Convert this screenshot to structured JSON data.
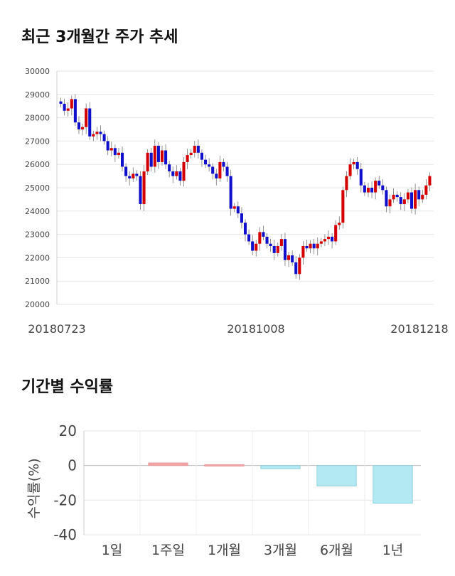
{
  "sections": {
    "price_title": "최근 3개월간 주가 추세",
    "return_title": "기간별 수익률"
  },
  "chart_data": [
    {
      "type": "candlestick",
      "title": "최근 3개월간 주가 추세",
      "ylim": [
        20000,
        30000
      ],
      "yticks": [
        20000,
        21000,
        22000,
        23000,
        24000,
        25000,
        26000,
        27000,
        28000,
        29000,
        30000
      ],
      "ytick_labels": [
        "20000",
        "21000",
        "22000",
        "23000",
        "24000",
        "25000",
        "26000",
        "27000",
        "28000",
        "29000",
        "30000"
      ],
      "x_labels": [
        "20180723",
        "20181008",
        "20181218"
      ],
      "grid": true,
      "up_color": "#d40000",
      "down_color": "#1010cc",
      "close_series": [
        28600,
        28300,
        28400,
        28800,
        27800,
        27500,
        27600,
        28400,
        27200,
        27300,
        27400,
        27300,
        27000,
        26600,
        26700,
        26400,
        26500,
        25900,
        25500,
        25400,
        25600,
        25500,
        24300,
        25700,
        26500,
        25900,
        26800,
        26100,
        26600,
        26000,
        25700,
        25500,
        25700,
        25300,
        26100,
        26400,
        26500,
        26800,
        26500,
        26200,
        26000,
        25900,
        25600,
        25400,
        26100,
        25900,
        25500,
        24100,
        24200,
        23900,
        23500,
        23000,
        22700,
        22300,
        22600,
        23100,
        22900,
        22600,
        22500,
        22200,
        22500,
        22800,
        21900,
        22100,
        21800,
        21300,
        22000,
        22500,
        22400,
        22600,
        22400,
        22600,
        22700,
        22800,
        22900,
        22700,
        23400,
        23500,
        24900,
        25500,
        26000,
        26100,
        25800,
        25100,
        24800,
        25000,
        24800,
        25300,
        25100,
        24900,
        24200,
        24500,
        24700,
        24600,
        24300,
        24500,
        24800,
        24100,
        24900,
        24500,
        24700,
        25100,
        25500
      ]
    },
    {
      "type": "bar",
      "title": "기간별 수익률",
      "ylabel": "수익률(%)",
      "categories": [
        "1일",
        "1주일",
        "1개월",
        "3개월",
        "6개월",
        "1년"
      ],
      "values": [
        0,
        1.5,
        0.5,
        -1.8,
        -11.8,
        -21.8
      ],
      "ylim": [
        -40,
        20
      ],
      "yticks": [
        20,
        0,
        -20,
        -40
      ],
      "positive_color": "#f4a6a6",
      "negative_color": "#b3e9f3",
      "grid": true
    }
  ]
}
